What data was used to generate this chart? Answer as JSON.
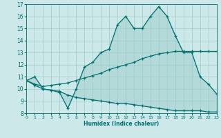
{
  "xlabel": "Humidex (Indice chaleur)",
  "x": [
    0,
    1,
    2,
    3,
    4,
    5,
    6,
    7,
    8,
    9,
    10,
    11,
    12,
    13,
    14,
    15,
    16,
    17,
    18,
    19,
    20,
    21,
    22,
    23
  ],
  "curve1": [
    10.7,
    11.0,
    10.0,
    9.9,
    9.7,
    8.4,
    10.0,
    11.8,
    12.2,
    13.0,
    13.3,
    15.3,
    16.0,
    15.0,
    15.0,
    16.0,
    16.8,
    16.0,
    14.4,
    13.0,
    13.0,
    11.0,
    10.4,
    9.6
  ],
  "curve2": [
    10.7,
    10.4,
    10.2,
    10.3,
    10.4,
    10.5,
    10.7,
    10.9,
    11.1,
    11.3,
    11.6,
    11.8,
    12.0,
    12.2,
    12.5,
    12.7,
    12.9,
    13.0,
    13.1,
    13.1,
    13.1,
    13.1,
    13.1,
    13.1
  ],
  "curve3": [
    10.7,
    10.3,
    10.0,
    9.9,
    9.8,
    9.5,
    9.3,
    9.2,
    9.1,
    9.0,
    8.9,
    8.8,
    8.8,
    8.7,
    8.6,
    8.5,
    8.4,
    8.3,
    8.2,
    8.2,
    8.2,
    8.2,
    8.1,
    8.1
  ],
  "color": "#007070",
  "bg_color": "#cde8e8",
  "grid_color": "#a0cccc",
  "ylim": [
    8,
    17
  ],
  "xlim": [
    0,
    23
  ],
  "yticks": [
    8,
    9,
    10,
    11,
    12,
    13,
    14,
    15,
    16,
    17
  ],
  "xticks": [
    0,
    1,
    2,
    3,
    4,
    5,
    6,
    7,
    8,
    9,
    10,
    11,
    12,
    13,
    14,
    15,
    16,
    17,
    18,
    19,
    20,
    21,
    22,
    23
  ]
}
